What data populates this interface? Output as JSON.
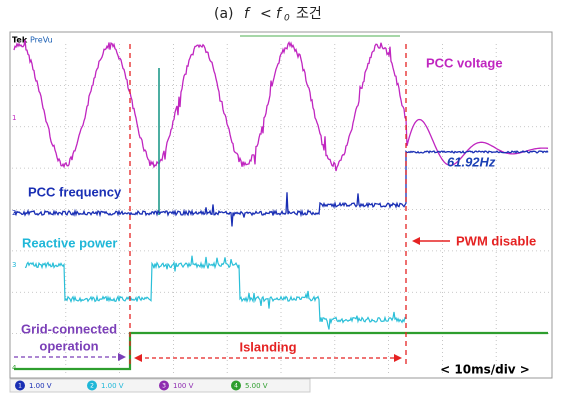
{
  "caption": {
    "label": "(a)",
    "var": "f",
    "op": "<",
    "var0": "f",
    "sub": "0",
    "word": "조건"
  },
  "header": {
    "brand": "Tek",
    "mode": "PreVu"
  },
  "annotations": {
    "voltage": "PCC voltage",
    "freq_value": "61.92Hz",
    "frequency": "PCC frequency",
    "reactive": "Reactive power",
    "pwm": "PWM disable",
    "grid_line1": "Grid-connected",
    "grid_line2": "operation",
    "islanding": "Islanding",
    "timebase": "< 10ms/div >"
  },
  "markers": [
    "1",
    "2",
    "3",
    "4"
  ],
  "channels": [
    {
      "id": "1",
      "scale": "1.00 V"
    },
    {
      "id": "2",
      "scale": "1.00 V"
    },
    {
      "id": "3",
      "scale": "100 V"
    },
    {
      "id": "4",
      "scale": "5.00 V"
    }
  ]
}
